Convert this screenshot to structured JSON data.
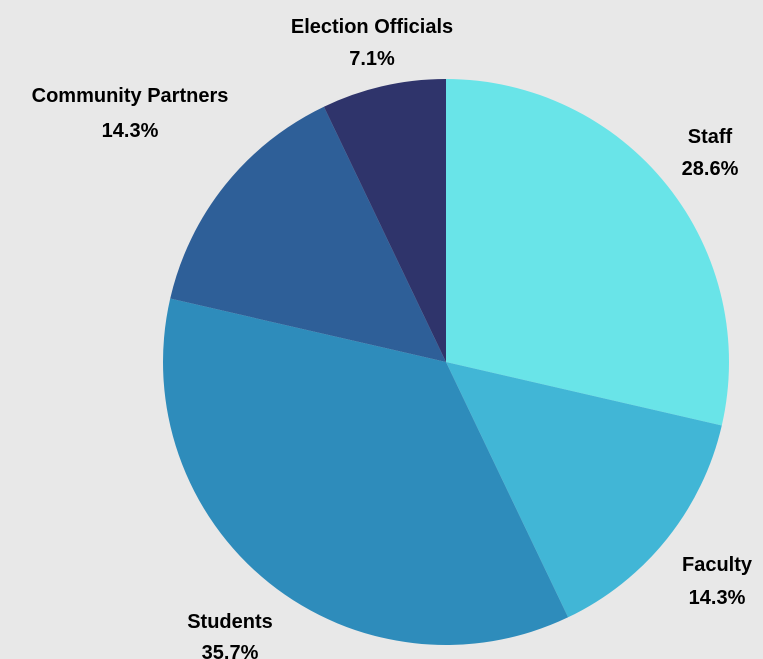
{
  "chart_data": {
    "type": "pie",
    "title": "",
    "start_angle_deg": 0,
    "direction": "clockwise",
    "slices": [
      {
        "label": "Staff",
        "value": 28.6,
        "value_label": "28.6%",
        "color": "#69e4e8"
      },
      {
        "label": "Faculty",
        "value": 14.3,
        "value_label": "14.3%",
        "color": "#41b6d6"
      },
      {
        "label": "Students",
        "value": 35.7,
        "value_label": "35.7%",
        "color": "#2e8cbb"
      },
      {
        "label": "Community Partners",
        "value": 14.3,
        "value_label": "14.3%",
        "color": "#2e5f98"
      },
      {
        "label": "Election Officials",
        "value": 7.1,
        "value_label": "7.1%",
        "color": "#2f346b"
      }
    ],
    "background": "#e8e8e8"
  }
}
